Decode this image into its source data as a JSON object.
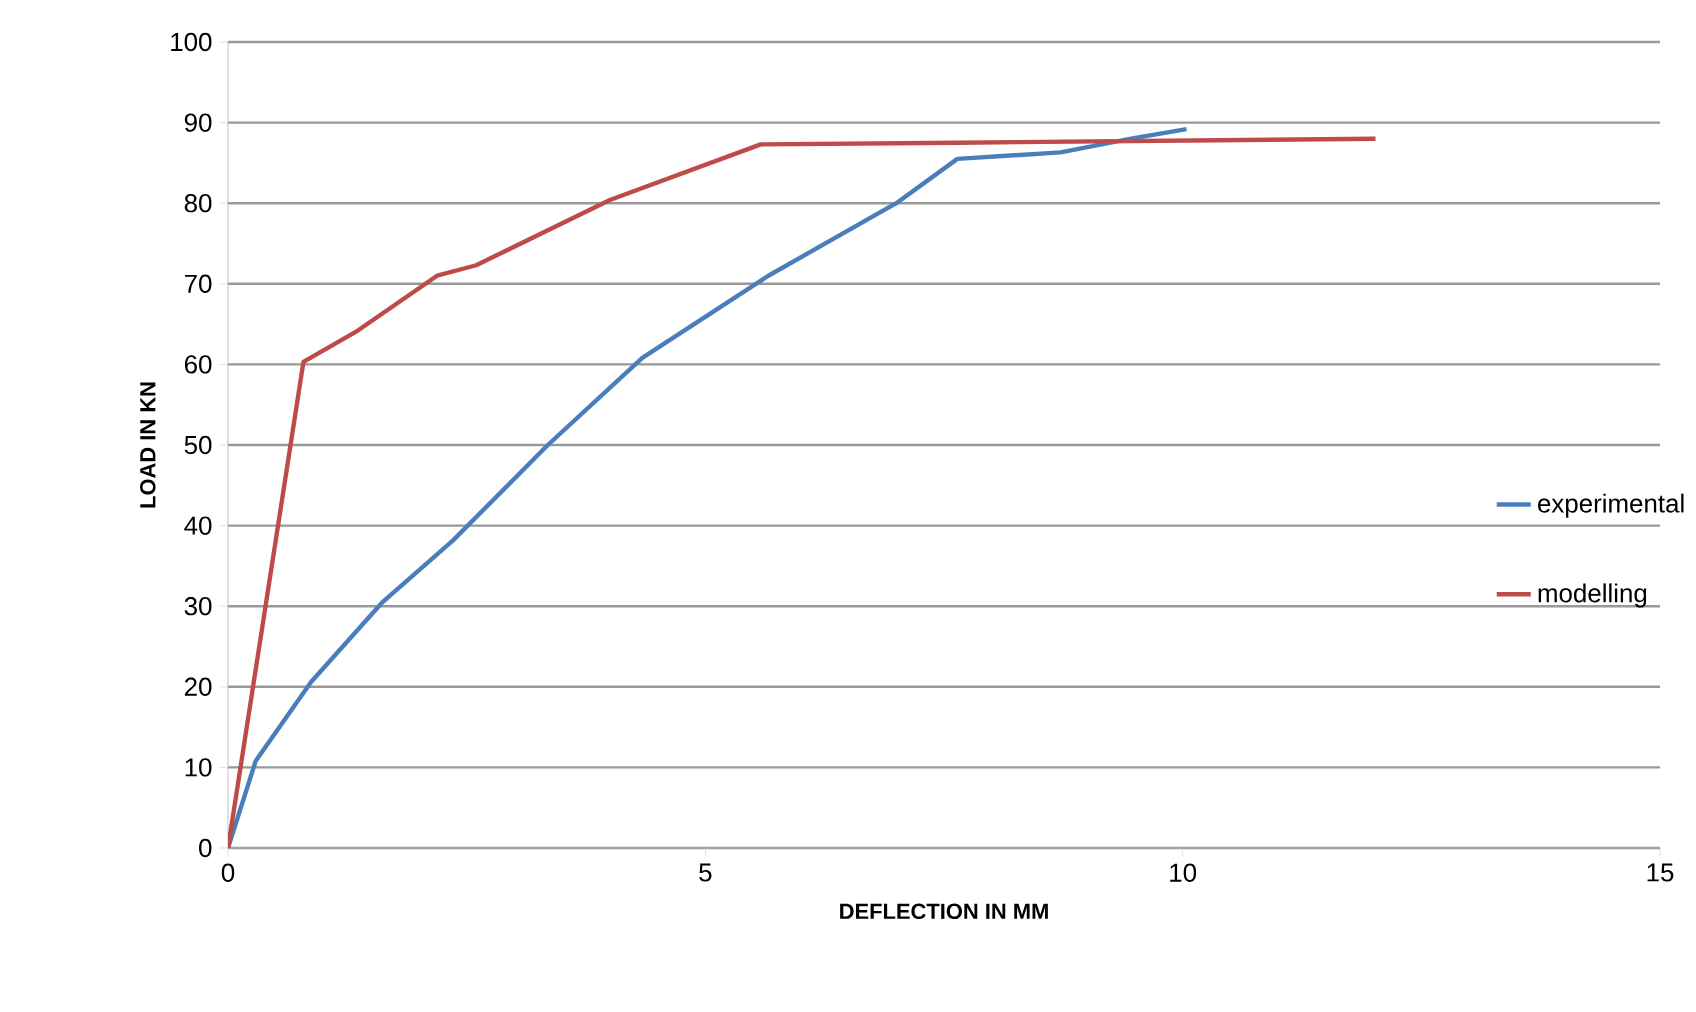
{
  "chart_data": {
    "type": "line",
    "xlabel": "DEFLECTION IN MM",
    "ylabel": "LOAD IN KN",
    "xlim": [
      0,
      15
    ],
    "xticks": [
      0,
      5,
      10,
      15
    ],
    "ylim": [
      0,
      100
    ],
    "yticks": [
      0,
      10,
      20,
      30,
      40,
      50,
      60,
      70,
      80,
      90,
      100
    ],
    "grid": "y",
    "legend": "right",
    "marker": "none",
    "line_style": "solid",
    "series": [
      {
        "name": "experimental",
        "color": "#4a7ebb",
        "x": [
          0,
          0.29,
          0.87,
          1.61,
          2.36,
          3.35,
          4.34,
          5.66,
          7.0,
          7.64,
          8.72,
          9.46,
          10.04
        ],
        "values": [
          0,
          10.8,
          20.6,
          30.4,
          38.2,
          50,
          60.8,
          71,
          80,
          85.5,
          86.3,
          88,
          89.2
        ]
      },
      {
        "name": "modelling",
        "color": "#be4b48",
        "x": [
          0,
          0.79,
          1.36,
          2.19,
          2.6,
          4.0,
          5.58,
          7.64,
          12.02
        ],
        "values": [
          0,
          60.3,
          64.2,
          71,
          72.3,
          80.4,
          87.3,
          87.5,
          88
        ]
      }
    ]
  }
}
